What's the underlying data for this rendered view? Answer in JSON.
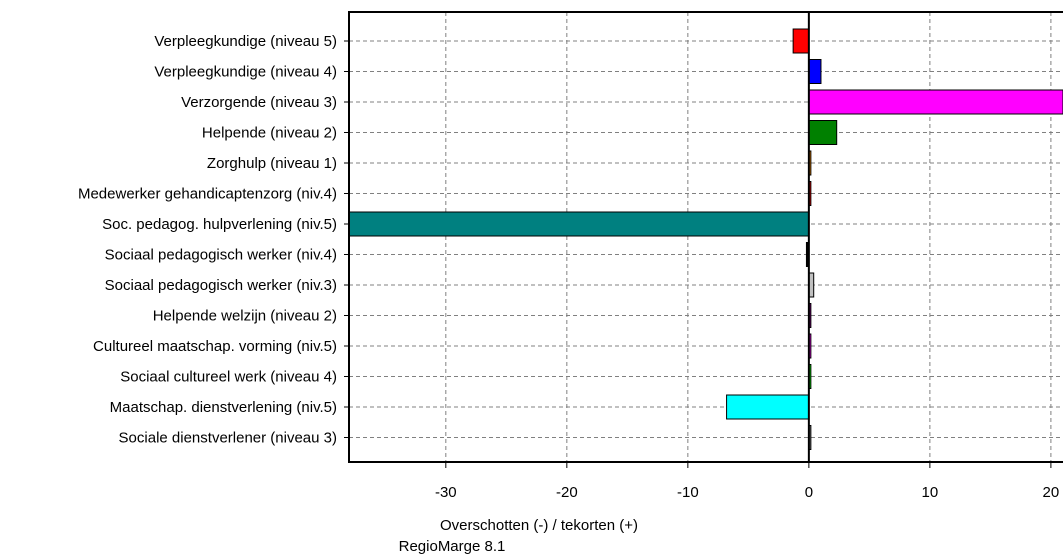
{
  "chart_data": {
    "type": "bar",
    "orientation": "horizontal",
    "xlabel": "Overschotten (-) / tekorten (+)",
    "footer": "RegioMarge 8.1",
    "xlim": [
      -38,
      21
    ],
    "xticks": [
      -30,
      -20,
      -10,
      0,
      10,
      20
    ],
    "grid": true,
    "categories": [
      "Verpleegkundige (niveau 5)",
      "Verpleegkundige (niveau 4)",
      "Verzorgende (niveau 3)",
      "Helpende (niveau 2)",
      "Zorghulp (niveau 1)",
      "Medewerker gehandicaptenzorg (niv.4)",
      "Soc. pedagog. hulpverlening (niv.5)",
      "Sociaal pedagogisch werker (niv.4)",
      "Sociaal pedagogisch werker (niv.3)",
      "Helpende welzijn (niveau 2)",
      "Cultureel maatschap. vorming (niv.5)",
      "Sociaal cultureel werk (niveau 4)",
      "Maatschap. dienstverlening (niv.5)",
      "Sociale dienstverlener (niveau 3)"
    ],
    "values": [
      -1.3,
      1.0,
      22.0,
      2.3,
      0.1,
      0.1,
      -38.0,
      -0.2,
      0.4,
      0.05,
      0.1,
      0.1,
      -6.8,
      0.05
    ],
    "colors": [
      "#ff0000",
      "#0000ff",
      "#ff00ff",
      "#008000",
      "#ff8c00",
      "#ff0000",
      "#008080",
      "#000000",
      "#c0c0c0",
      "#800080",
      "#ff00ff",
      "#00ff00",
      "#00ffff",
      "#808080"
    ]
  }
}
